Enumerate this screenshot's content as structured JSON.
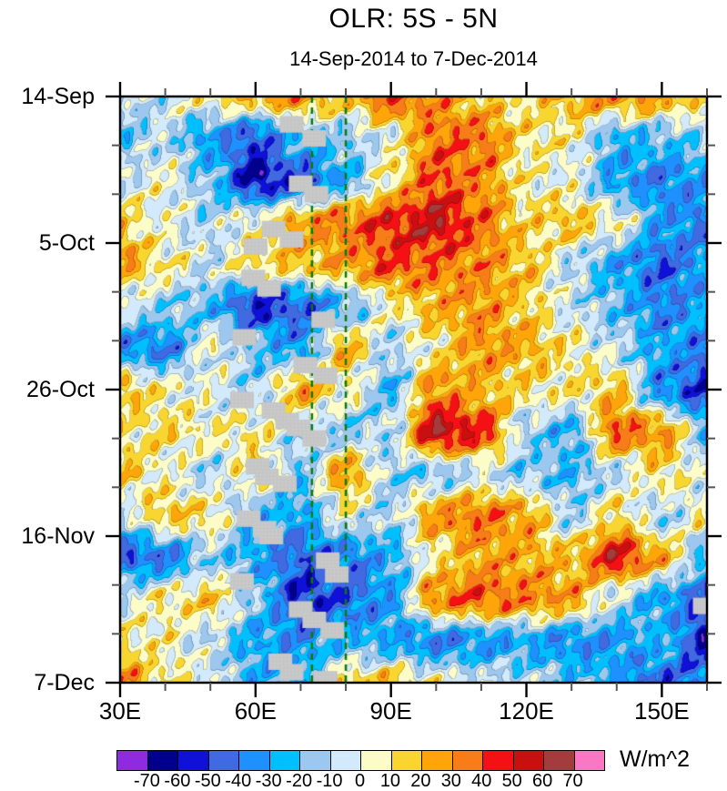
{
  "header": {
    "title": "OLR: 5S - 5N",
    "subtitle": "14-Sep-2014 to 7-Dec-2014"
  },
  "chart_data": {
    "type": "heatmap",
    "title": "OLR: 5S - 5N",
    "subtitle": "14-Sep-2014 to 7-Dec-2014",
    "units": "W/m^2",
    "lon_range": [
      30,
      160
    ],
    "day_range": [
      0,
      84
    ],
    "x_axis": {
      "major_ticks": [
        {
          "value": 30,
          "label": "30E"
        },
        {
          "value": 60,
          "label": "60E"
        },
        {
          "value": 90,
          "label": "90E"
        },
        {
          "value": 120,
          "label": "120E"
        },
        {
          "value": 150,
          "label": "150E"
        }
      ],
      "minor_tick_values": [
        40,
        50,
        70,
        80,
        100,
        110,
        130,
        140,
        160
      ]
    },
    "y_axis": {
      "start_date": "14-Sep-2014",
      "major_ticks": [
        {
          "day": 0,
          "label": "14-Sep"
        },
        {
          "day": 21,
          "label": "5-Oct"
        },
        {
          "day": 42,
          "label": "26-Oct"
        },
        {
          "day": 63,
          "label": "16-Nov"
        },
        {
          "day": 84,
          "label": "7-Dec"
        }
      ],
      "minor_tick_days": [
        7,
        14,
        28,
        35,
        49,
        56,
        70,
        77
      ]
    },
    "levels": {
      "boundaries": [
        -70,
        -60,
        -50,
        -40,
        -30,
        -20,
        -10,
        0,
        10,
        20,
        30,
        40,
        50,
        60,
        70
      ],
      "colors": [
        "#8E2BE0",
        "#00008C",
        "#0F10D8",
        "#4169E1",
        "#1E90FF",
        "#00BFFF",
        "#9CC7EF",
        "#D2EAFB",
        "#FCFCC8",
        "#F9D62F",
        "#FFA50A",
        "#F87D19",
        "#F51015",
        "#C81010",
        "#A33C3C",
        "#F978C4"
      ]
    },
    "colorbar_tick_labels": [
      "-70",
      "-60",
      "-50",
      "-40",
      "-30",
      "-20",
      "-10",
      "0",
      "10",
      "20",
      "30",
      "40",
      "50",
      "60",
      "70"
    ],
    "grid": {
      "lons": [
        30,
        40,
        50,
        60,
        70,
        80,
        90,
        100,
        110,
        120,
        130,
        140,
        150,
        160
      ],
      "days": [
        0,
        6,
        12,
        18,
        24,
        30,
        36,
        42,
        48,
        54,
        60,
        66,
        72,
        78,
        84
      ],
      "values": [
        [
          -12,
          -5,
          8,
          22,
          28,
          15,
          40,
          28,
          15,
          10,
          22,
          28,
          25,
          10
        ],
        [
          -18,
          -8,
          -32,
          -48,
          -22,
          -15,
          0,
          35,
          35,
          10,
          5,
          -25,
          -20,
          -12
        ],
        [
          -5,
          2,
          -18,
          -62,
          -48,
          -25,
          10,
          40,
          30,
          5,
          0,
          -30,
          -38,
          -30
        ],
        [
          15,
          0,
          -10,
          5,
          25,
          35,
          45,
          55,
          35,
          12,
          18,
          5,
          -30,
          -40
        ],
        [
          28,
          8,
          -5,
          12,
          18,
          25,
          40,
          35,
          30,
          18,
          -8,
          -28,
          -45,
          -30
        ],
        [
          -5,
          -12,
          -22,
          -55,
          -45,
          -22,
          5,
          22,
          28,
          15,
          -5,
          -20,
          -38,
          -28
        ],
        [
          -32,
          -38,
          2,
          -18,
          -32,
          22,
          -12,
          8,
          28,
          22,
          8,
          -8,
          -28,
          -38
        ],
        [
          20,
          5,
          -2,
          -12,
          25,
          5,
          -22,
          30,
          20,
          10,
          8,
          18,
          -35,
          -55
        ],
        [
          8,
          12,
          5,
          8,
          -10,
          -15,
          -8,
          58,
          45,
          -12,
          -25,
          38,
          28,
          -18
        ],
        [
          18,
          2,
          -10,
          12,
          -18,
          28,
          -12,
          -18,
          -5,
          -15,
          -22,
          -8,
          12,
          -5
        ],
        [
          -10,
          18,
          10,
          -22,
          -28,
          2,
          -12,
          28,
          35,
          25,
          -12,
          12,
          -12,
          8
        ],
        [
          -45,
          -40,
          -12,
          -28,
          -45,
          -40,
          -25,
          8,
          25,
          22,
          18,
          52,
          22,
          -22
        ],
        [
          -5,
          8,
          15,
          -15,
          -55,
          -45,
          -30,
          32,
          38,
          32,
          25,
          -8,
          -30,
          -45
        ],
        [
          8,
          5,
          -8,
          -28,
          -35,
          -22,
          -28,
          -38,
          -32,
          -28,
          -35,
          -32,
          -22,
          -58
        ],
        [
          32,
          10,
          -2,
          -25,
          -22,
          12,
          18,
          2,
          -5,
          -10,
          -18,
          -28,
          -45,
          -40
        ]
      ]
    },
    "reference_lines": {
      "style": "dashed",
      "color": "#0B7A0B",
      "lons": [
        72.5,
        80
      ]
    },
    "track_markers": {
      "color": "#C6C6C6",
      "points": [
        [
          68,
          4
        ],
        [
          73,
          6
        ],
        [
          70,
          12.5
        ],
        [
          73.5,
          14
        ],
        [
          64,
          19
        ],
        [
          68,
          20.5
        ],
        [
          60,
          21.5
        ],
        [
          59.5,
          26
        ],
        [
          63,
          27.5
        ],
        [
          75,
          32
        ],
        [
          57.5,
          34.5
        ],
        [
          71,
          38.5
        ],
        [
          75.5,
          40
        ],
        [
          57,
          43.5
        ],
        [
          64,
          45
        ],
        [
          67,
          46.5
        ],
        [
          69.5,
          47.5
        ],
        [
          73,
          49
        ],
        [
          60.5,
          53
        ],
        [
          62.5,
          54.5
        ],
        [
          66.5,
          55.5
        ],
        [
          58.5,
          60.5
        ],
        [
          62,
          62
        ],
        [
          63.5,
          63
        ],
        [
          76,
          66.5
        ],
        [
          78,
          68.5
        ],
        [
          57,
          69.5
        ],
        [
          70,
          73.5
        ],
        [
          73,
          75
        ],
        [
          77,
          76.5
        ],
        [
          159.5,
          73
        ],
        [
          65.5,
          81
        ],
        [
          68,
          82.5
        ],
        [
          75.5,
          83.5
        ]
      ]
    },
    "noise_texture": {
      "terms": [
        [
          6.5,
          0.55,
          0.85,
          1.3
        ],
        [
          5.5,
          1.15,
          -0.65,
          4.1
        ],
        [
          4.5,
          0.35,
          1.75,
          2.2
        ],
        [
          3.5,
          2.05,
          0.5,
          5.0
        ],
        [
          3.0,
          0.9,
          2.7,
          0.7
        ]
      ]
    }
  }
}
